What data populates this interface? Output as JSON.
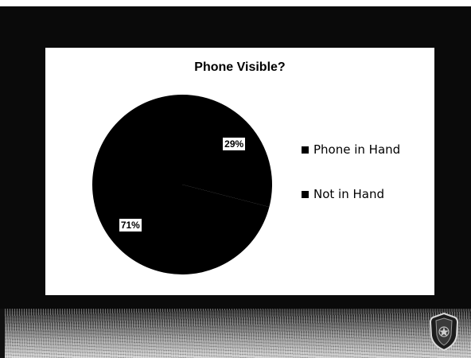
{
  "colors": {
    "slide_background": "#0a0a0a",
    "chart_background": "#ffffff",
    "pie_fill": "#000000",
    "label_background": "#ffffff"
  },
  "icons": {
    "badge": "police-badge-icon"
  },
  "chart_data": {
    "type": "pie",
    "title": "Phone Visible?",
    "categories": [
      "Phone in Hand",
      "Not in Hand"
    ],
    "values": [
      29,
      71
    ],
    "labels": [
      "29%",
      "71%"
    ],
    "legend": {
      "placement": "right",
      "entries": [
        "Phone in Hand",
        "Not in Hand"
      ]
    }
  }
}
